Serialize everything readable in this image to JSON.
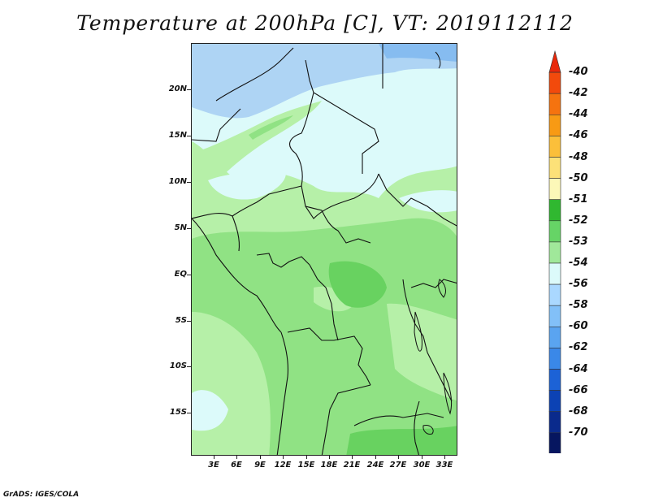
{
  "title": "Temperature at 200hPa [C], VT: 2019112112",
  "footer": "GrADS: IGES/COLA",
  "map": {
    "lat_labels": [
      "20N",
      "15N",
      "10N",
      "5N",
      "EQ",
      "5S",
      "10S",
      "15S"
    ],
    "lon_labels": [
      "3E",
      "6E",
      "9E",
      "12E",
      "15E",
      "18E",
      "21E",
      "24E",
      "27E",
      "30E",
      "33E"
    ]
  },
  "colorbar": {
    "labels": [
      "-40",
      "-42",
      "-44",
      "-46",
      "-48",
      "-50",
      "-51",
      "-52",
      "-53",
      "-54",
      "-56",
      "-58",
      "-60",
      "-62",
      "-64",
      "-66",
      "-68",
      "-70"
    ],
    "colors": [
      "#e8280a",
      "#f24a0c",
      "#f5730f",
      "#f89a14",
      "#fbbf3a",
      "#fce178",
      "#fcf8b8",
      "#30b830",
      "#66d466",
      "#a0e89a",
      "#dcfafa",
      "#aad8ff",
      "#82c0f8",
      "#5aa4f0",
      "#3a88e8",
      "#1c62d6",
      "#0c42b4",
      "#0a2a8c",
      "#061660",
      "#d8d8f4"
    ]
  },
  "palette": {
    "blue_light": "#aed4f4",
    "blue_mid": "#86bcf0",
    "cyan": "#dcfafa",
    "green_pale": "#b6f0a8",
    "green_mid": "#90e284",
    "green_dark": "#68d260"
  }
}
